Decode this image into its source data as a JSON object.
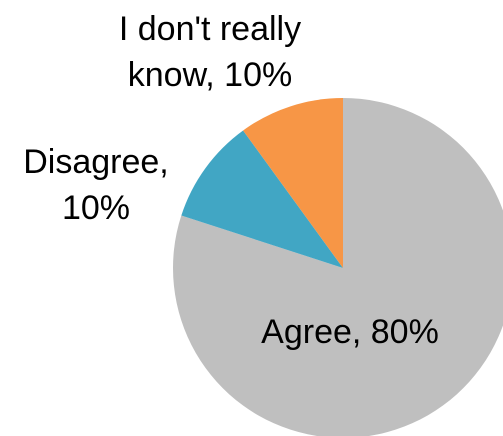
{
  "chart_data": {
    "type": "pie",
    "title": "",
    "start_angle_deg": 0,
    "direction": "clockwise",
    "slices": [
      {
        "label": "Agree",
        "value": 80,
        "display": "80%",
        "color": "#bfbfbf"
      },
      {
        "label": "Disagree",
        "value": 10,
        "display": "10%",
        "color": "#41a6c4"
      },
      {
        "label": "I don't really know",
        "value": 10,
        "display": "10%",
        "color": "#f79646"
      }
    ],
    "data_labels": [
      {
        "lines": [
          "Agree, 80%"
        ]
      },
      {
        "lines": [
          "Disagree,",
          "10%"
        ]
      },
      {
        "lines": [
          "I don't really",
          "know, 10%"
        ]
      }
    ],
    "legend": "none"
  }
}
